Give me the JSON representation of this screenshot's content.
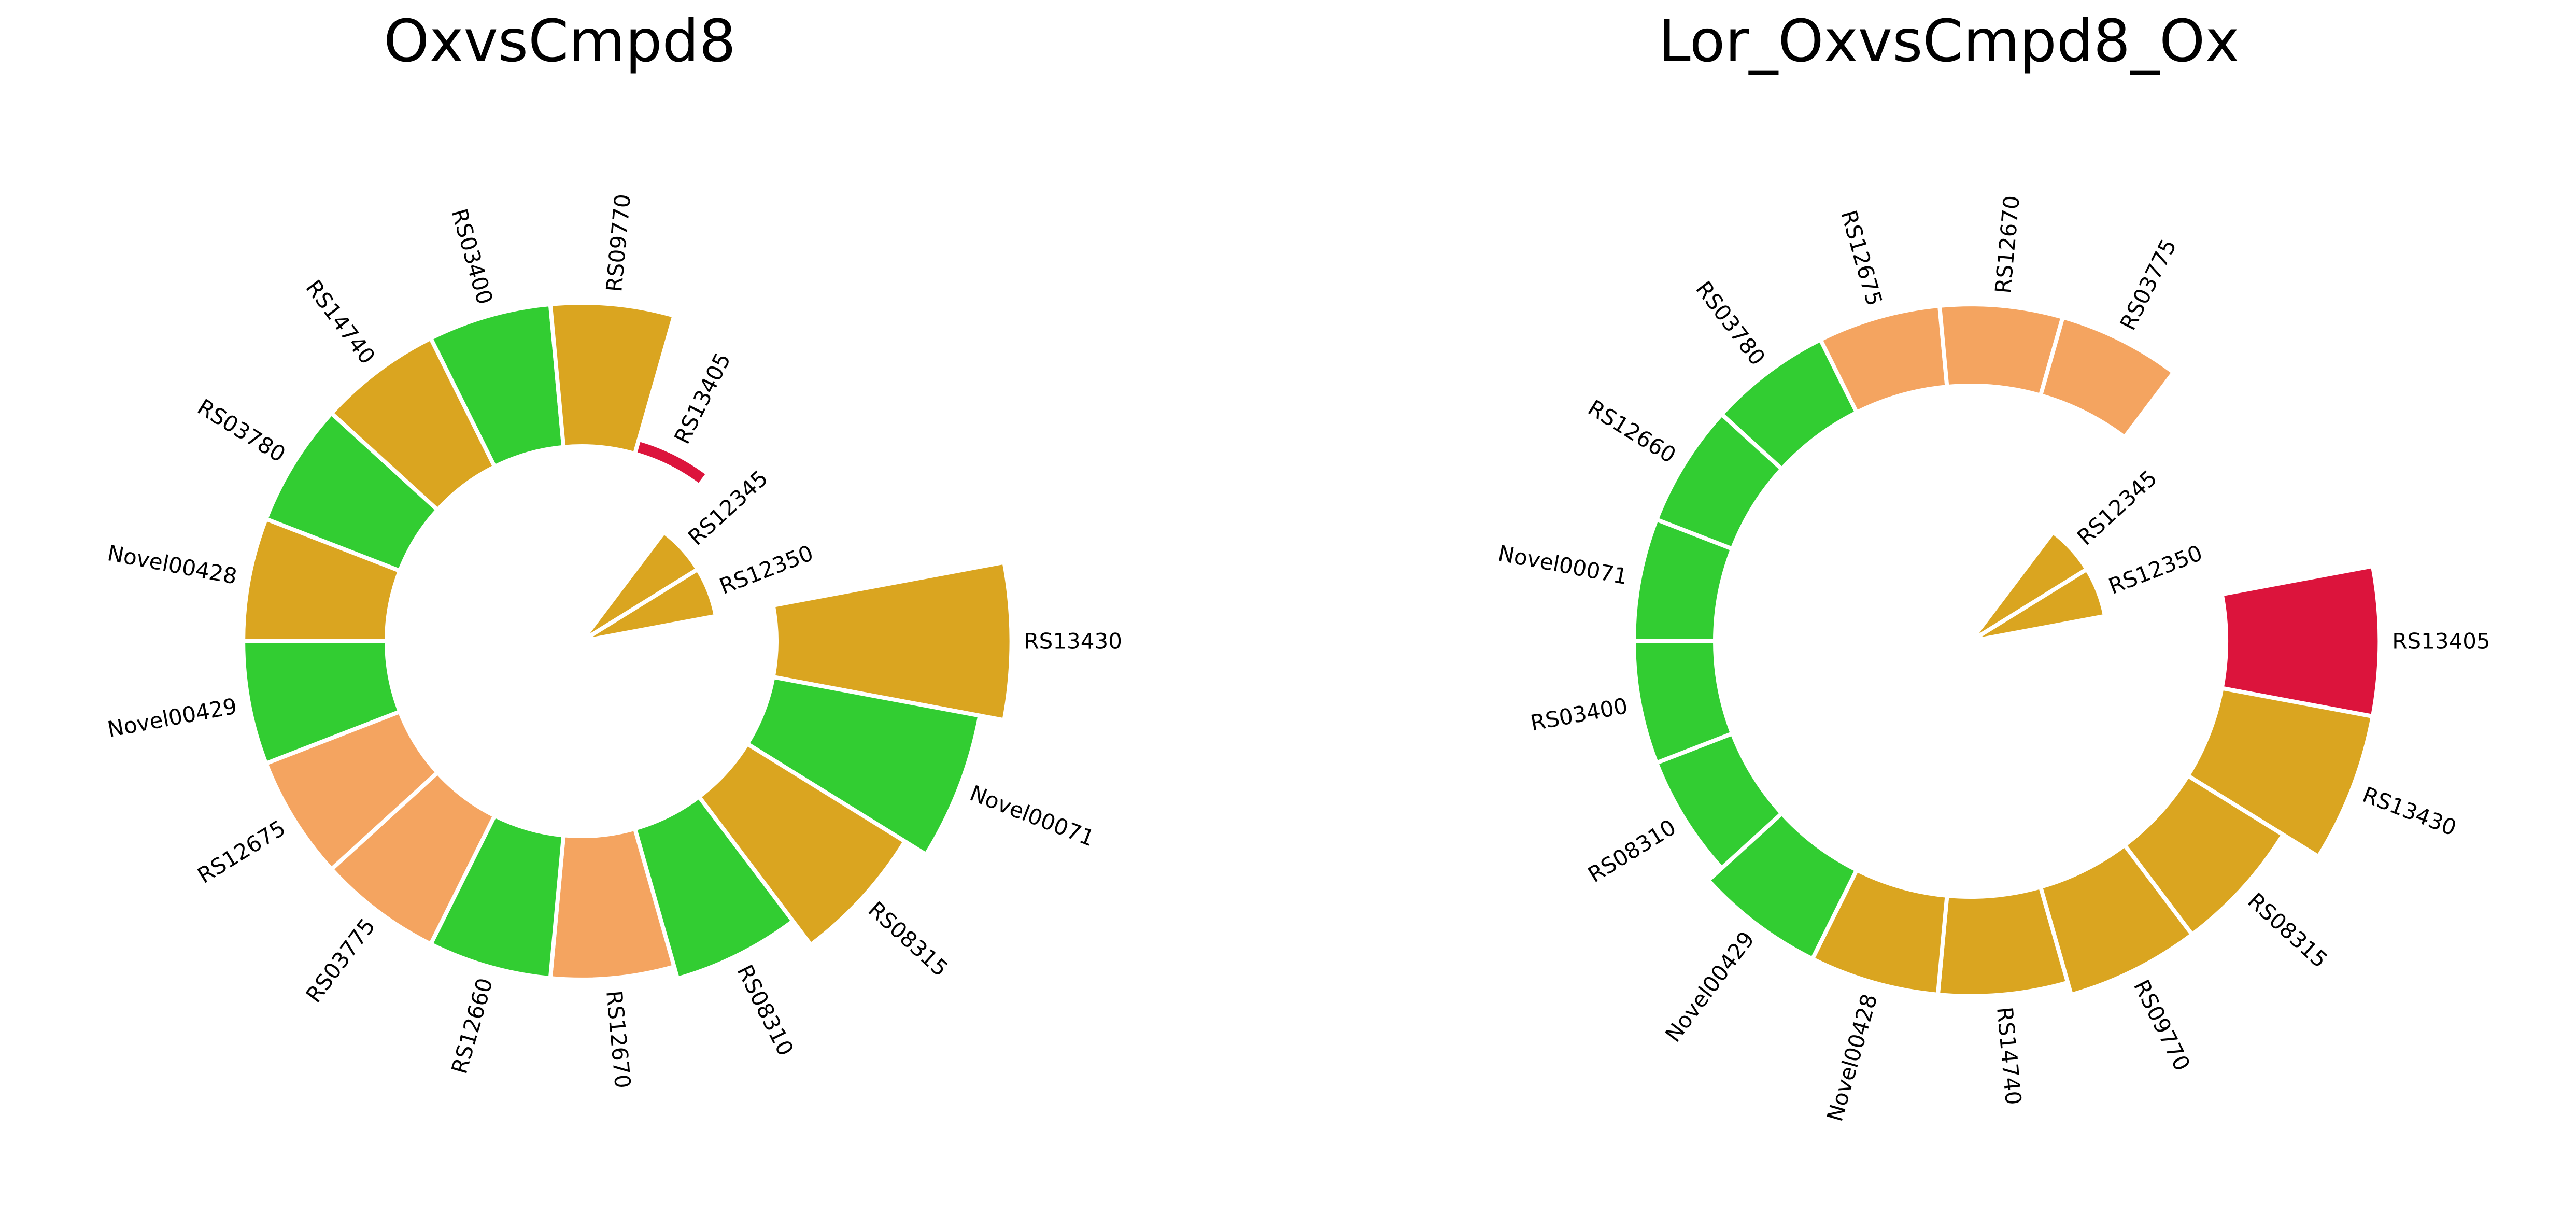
{
  "colors": {
    "goldenrod": "#DAA520",
    "green": "#32CD32",
    "sandy": "#F4A460",
    "crimson": "#DC143C"
  },
  "chart_data": [
    {
      "type": "circular-bar",
      "title": "OxvsCmpd8",
      "categories": [
        "RS13430",
        "Novel00071",
        "RS08315",
        "RS08310",
        "RS12670",
        "RS12660",
        "RS03775",
        "RS12675",
        "Novel00429",
        "Novel00428",
        "RS03780",
        "RS14740",
        "RS03400",
        "RS09770",
        "RS13405",
        "RS12345",
        "RS12350"
      ],
      "values": [
        0.95,
        0.85,
        0.75,
        0.63,
        0.58,
        0.58,
        0.58,
        0.58,
        0.58,
        0.58,
        0.58,
        0.58,
        0.58,
        0.58,
        0.06,
        0.4,
        0.4
      ],
      "colors": [
        "#DAA520",
        "#32CD32",
        "#DAA520",
        "#32CD32",
        "#F4A460",
        "#32CD32",
        "#F4A460",
        "#F4A460",
        "#32CD32",
        "#DAA520",
        "#32CD32",
        "#DAA520",
        "#32CD32",
        "#DAA520",
        "#DC143C",
        "#DAA520",
        "#DAA520"
      ],
      "inner_hole": [
        0,
        1
      ]
    },
    {
      "type": "circular-bar",
      "title": "Lor_OxvsCmpd8_Ox",
      "categories": [
        "RS13405",
        "RS13430",
        "RS08315",
        "RS09770",
        "RS14740",
        "Novel00428",
        "Novel00429",
        "RS08310",
        "RS03400",
        "Novel00071",
        "RS12660",
        "RS03780",
        "RS12675",
        "RS12670",
        "RS03775",
        "RS12345",
        "RS12350"
      ],
      "values": [
        0.85,
        0.85,
        0.62,
        0.62,
        0.55,
        0.55,
        0.55,
        0.45,
        0.45,
        0.45,
        0.45,
        0.45,
        0.45,
        0.45,
        0.45,
        0.4,
        0.4
      ],
      "colors": [
        "#DC143C",
        "#DAA520",
        "#DAA520",
        "#DAA520",
        "#DAA520",
        "#DAA520",
        "#32CD32",
        "#32CD32",
        "#32CD32",
        "#32CD32",
        "#32CD32",
        "#32CD32",
        "#F4A460",
        "#F4A460",
        "#F4A460",
        "#DAA520",
        "#DAA520"
      ],
      "inner_hole": [
        0,
        1
      ]
    }
  ]
}
